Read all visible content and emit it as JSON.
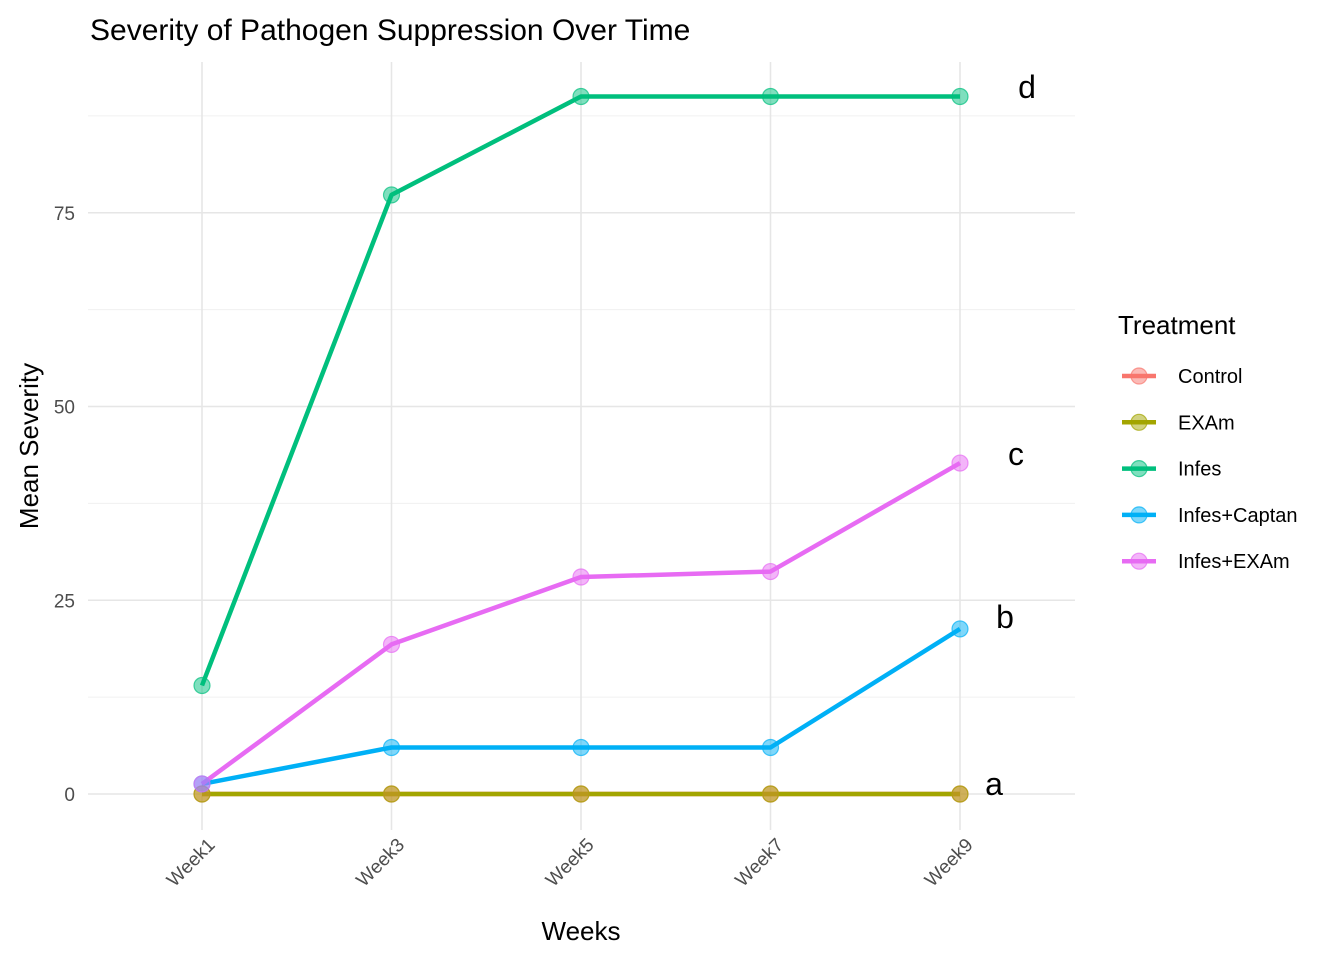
{
  "chart_data": {
    "type": "line",
    "title": "Severity of Pathogen Suppression Over Time",
    "xlabel": "Weeks",
    "ylabel": "Mean Severity",
    "categories": [
      "Week1",
      "Week3",
      "Week5",
      "Week7",
      "Week9"
    ],
    "ylim": [
      -5,
      95
    ],
    "yticks": [
      0,
      25,
      50,
      75
    ],
    "grid": true,
    "legend": {
      "title": "Treatment",
      "position": "right"
    },
    "series": [
      {
        "name": "Control",
        "color": "#F8766D",
        "values": [
          0,
          0,
          0,
          0,
          0
        ]
      },
      {
        "name": "EXAm",
        "color": "#A3A500",
        "values": [
          0,
          0,
          0,
          0,
          0
        ]
      },
      {
        "name": "Infes",
        "color": "#00BF7D",
        "values": [
          14,
          77.3,
          90,
          90,
          90
        ]
      },
      {
        "name": "Infes+Captan",
        "color": "#00B0F6",
        "values": [
          1.3,
          6,
          6,
          6,
          21.3
        ]
      },
      {
        "name": "Infes+EXAm",
        "color": "#E76BF3",
        "values": [
          1.3,
          19.3,
          28,
          28.7,
          42.7
        ]
      }
    ],
    "annotations": [
      {
        "text": "d",
        "x": "Week9",
        "y": 90
      },
      {
        "text": "c",
        "x": "Week9",
        "y": 42.7
      },
      {
        "text": "b",
        "x": "Week9",
        "y": 21.3
      },
      {
        "text": "a",
        "x": "Week9",
        "y": 0
      }
    ]
  }
}
